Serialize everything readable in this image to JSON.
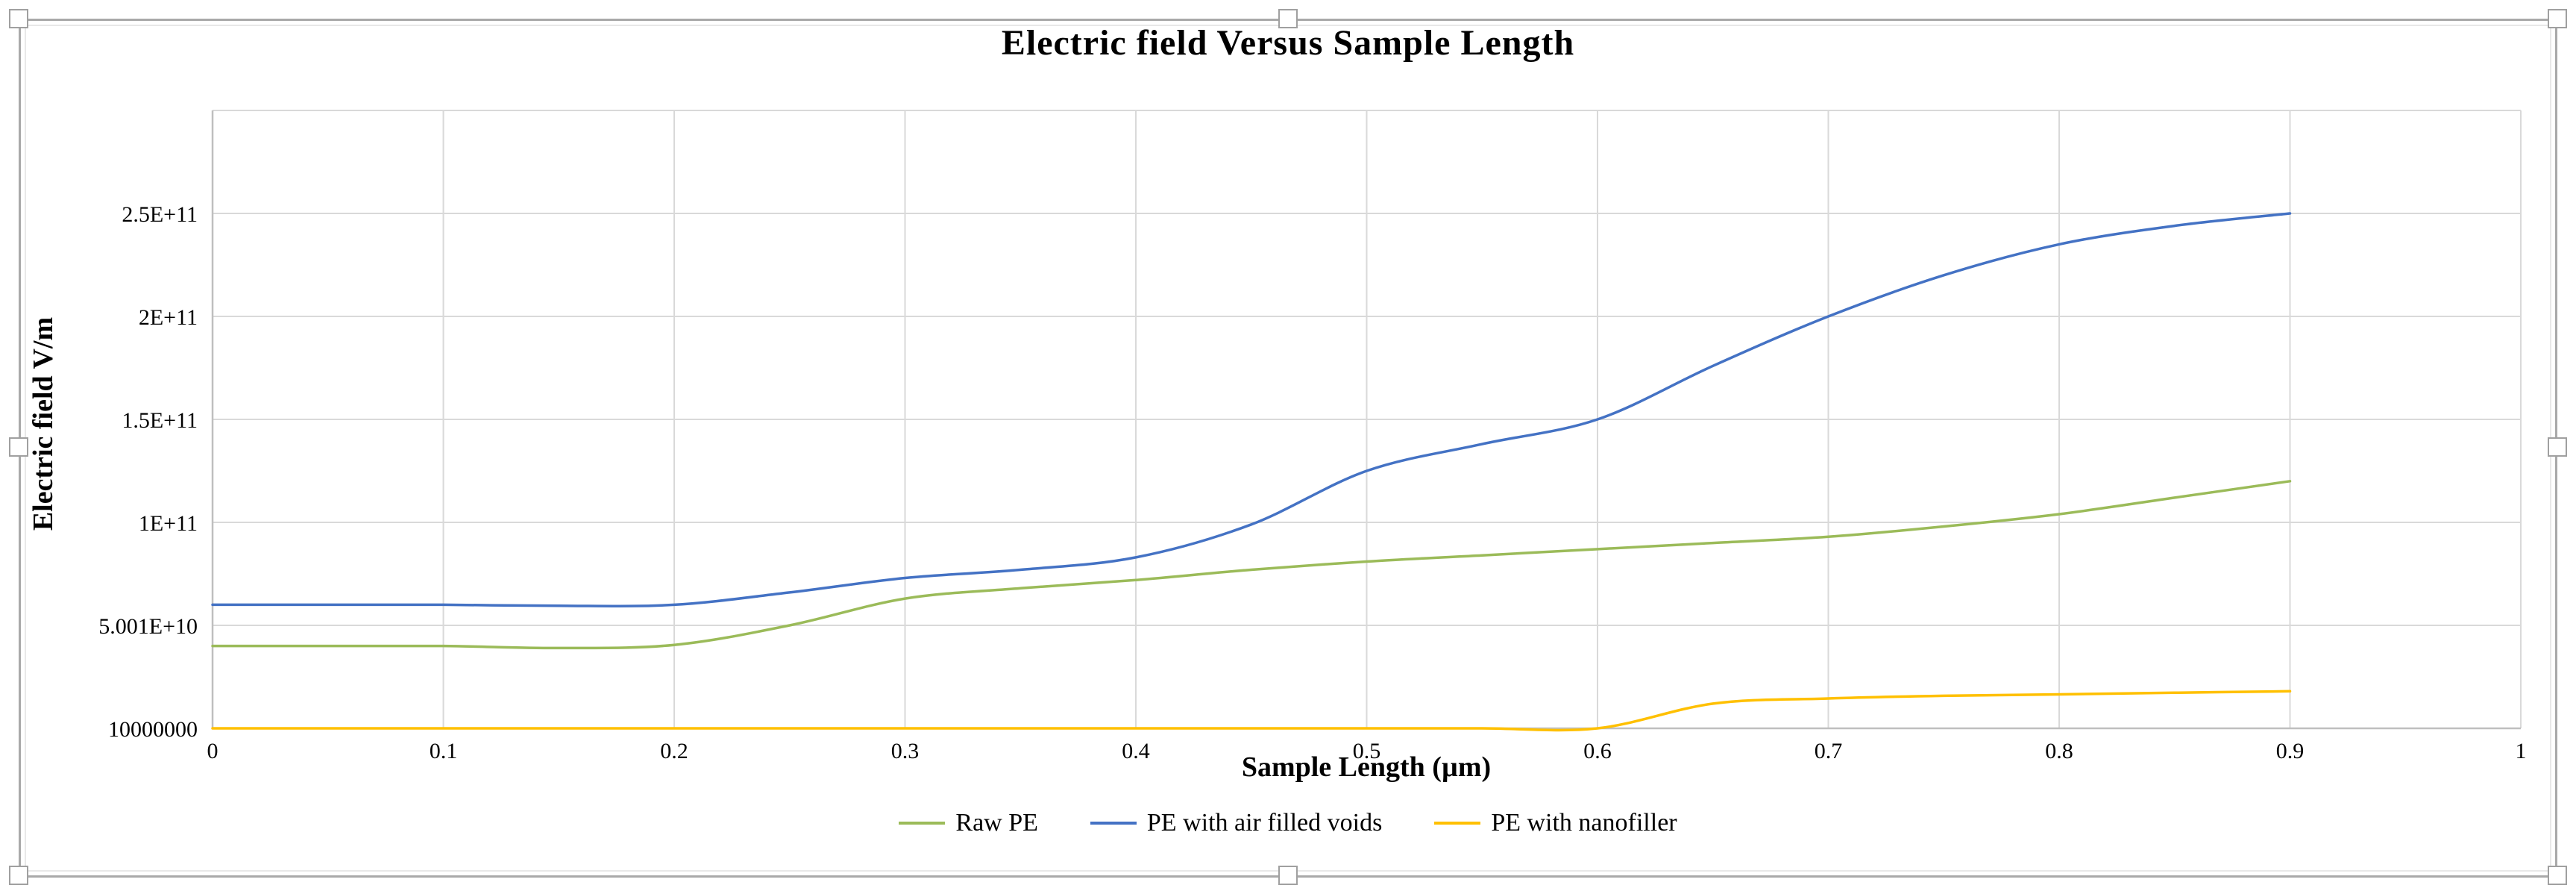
{
  "chart": {
    "title": "Electric field Versus Sample Length",
    "y_axis_title": "Electric field V/m",
    "x_axis_title": "Sample Length (µm)",
    "legend": [
      {
        "label": "Raw PE",
        "color": "#9BBB59"
      },
      {
        "label": "PE with air filled voids",
        "color": "#4472C4"
      },
      {
        "label": "PE with nanofiller",
        "color": "#FFC000"
      }
    ]
  },
  "chart_data": {
    "type": "line",
    "title": "Electric field Versus Sample Length",
    "xlabel": "Sample Length (µm)",
    "ylabel": "Electric field V/m",
    "smooth": true,
    "grid": true,
    "legend_position": "bottom",
    "xlim": [
      0,
      1
    ],
    "ylim": [
      10000000.0,
      300010000000.0
    ],
    "y_tick_step": 50000000000.0,
    "x": [
      0,
      0.05,
      0.1,
      0.15,
      0.2,
      0.25,
      0.3,
      0.35,
      0.4,
      0.45,
      0.5,
      0.55,
      0.6,
      0.65,
      0.7,
      0.75,
      0.8,
      0.85,
      0.9
    ],
    "series": [
      {
        "name": "Raw PE",
        "color": "#9BBB59",
        "values": [
          40000000000.0,
          40000000000.0,
          40000000000.0,
          39000000000.0,
          40500000000.0,
          50000000000.0,
          63000000000.0,
          68000000000.0,
          72000000000.0,
          77000000000.0,
          81000000000.0,
          84000000000.0,
          87000000000.0,
          90000000000.0,
          93000000000.0,
          98000000000.0,
          104000000000.0,
          112000000000.0,
          120000000000.0
        ]
      },
      {
        "name": "PE with air filled voids",
        "color": "#4472C4",
        "values": [
          60000000000.0,
          60000000000.0,
          60000000000.0,
          59500000000.0,
          60000000000.0,
          66000000000.0,
          73000000000.0,
          77000000000.0,
          83000000000.0,
          99000000000.0,
          125000000000.0,
          138000000000.0,
          150000000000.0,
          176000000000.0,
          200000000000.0,
          220000000000.0,
          235000000000.0,
          244000000000.0,
          250000000000.0
        ]
      },
      {
        "name": "PE with nanofiller",
        "color": "#FFC000",
        "values": [
          10000000.0,
          10000000.0,
          10000000.0,
          10000000.0,
          10000000.0,
          10000000.0,
          10000000.0,
          10000000.0,
          10000000.0,
          10000000.0,
          10000000.0,
          10000000.0,
          10000000.0,
          12000000000.0,
          14500000000.0,
          15800000000.0,
          16500000000.0,
          17300000000.0,
          18000000000.0
        ]
      }
    ],
    "y_ticks": [
      {
        "label": "10000000",
        "level": 0
      },
      {
        "label": "5.001E+10",
        "level": 1
      },
      {
        "label": "1E+11",
        "level": 2
      },
      {
        "label": "1.5E+11",
        "level": 3
      },
      {
        "label": "2E+11",
        "level": 4
      },
      {
        "label": "2.5E+11",
        "level": 5
      }
    ],
    "x_ticks": [
      {
        "label": "0",
        "value": 0.0
      },
      {
        "label": "0.1",
        "value": 0.1
      },
      {
        "label": "0.2",
        "value": 0.2
      },
      {
        "label": "0.3",
        "value": 0.3
      },
      {
        "label": "0.4",
        "value": 0.4
      },
      {
        "label": "0.5",
        "value": 0.5
      },
      {
        "label": "0.6",
        "value": 0.6
      },
      {
        "label": "0.7",
        "value": 0.7
      },
      {
        "label": "0.8",
        "value": 0.8
      },
      {
        "label": "0.9",
        "value": 0.9
      },
      {
        "label": "1",
        "value": 1.0
      }
    ]
  },
  "colors": {
    "gridline": "#d9d9d9",
    "axis_line": "#bfbfbf",
    "frame_border": "#a9a9a9",
    "text": "#000000"
  }
}
